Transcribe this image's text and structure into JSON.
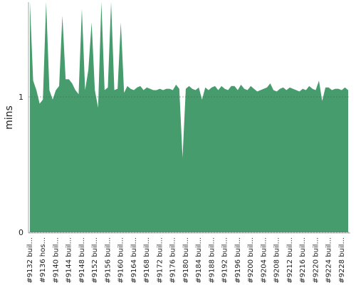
{
  "chart_data": {
    "type": "area",
    "y_label": "mins",
    "categories": [
      "#9132 buil...",
      null,
      null,
      null,
      "#9136 hos...",
      null,
      null,
      null,
      "#9140 buil...",
      null,
      null,
      null,
      "#9144 buil...",
      null,
      null,
      null,
      "#9148 buil...",
      null,
      null,
      null,
      "#9152 buil...",
      null,
      null,
      null,
      "#9156 buil...",
      null,
      null,
      null,
      "#9160 buil...",
      null,
      null,
      null,
      "#9164 buil...",
      null,
      null,
      null,
      "#9168 buil...",
      null,
      null,
      null,
      "#9172 buil...",
      null,
      null,
      null,
      "#9176 buil...",
      null,
      null,
      null,
      "#9180 buil...",
      null,
      null,
      null,
      "#9184 buil...",
      null,
      null,
      null,
      "#9188 buil...",
      null,
      null,
      null,
      "#9192 buil...",
      null,
      null,
      null,
      "#9196 buil...",
      null,
      null,
      null,
      "#9200 buil...",
      null,
      null,
      null,
      "#9204 buil...",
      null,
      null,
      null,
      "#9208 buil...",
      null,
      null,
      null,
      "#9212 buil...",
      null,
      null,
      null,
      "#9216 buil...",
      null,
      null,
      null,
      "#9220 buil...",
      null,
      null,
      null,
      "#9224 buil...",
      null,
      null,
      null,
      "#9228 buil...",
      null,
      null
    ],
    "values": [
      1.7,
      1.12,
      1.05,
      0.95,
      0.98,
      1.7,
      1.05,
      0.98,
      1.05,
      1.08,
      1.6,
      1.13,
      1.13,
      1.1,
      1.05,
      1.02,
      1.65,
      1.05,
      1.2,
      1.55,
      1.05,
      0.92,
      1.7,
      1.05,
      1.07,
      1.7,
      1.05,
      1.06,
      1.55,
      1.03,
      1.08,
      1.06,
      1.05,
      1.07,
      1.08,
      1.05,
      1.07,
      1.06,
      1.05,
      1.05,
      1.06,
      1.05,
      1.06,
      1.06,
      1.05,
      1.09,
      1.06,
      0.55,
      1.06,
      1.08,
      1.06,
      1.05,
      1.07,
      0.98,
      1.07,
      1.05,
      1.07,
      1.08,
      1.05,
      1.08,
      1.06,
      1.05,
      1.08,
      1.08,
      1.05,
      1.09,
      1.06,
      1.05,
      1.08,
      1.06,
      1.04,
      1.05,
      1.06,
      1.07,
      1.1,
      1.05,
      1.04,
      1.06,
      1.07,
      1.05,
      1.07,
      1.06,
      1.05,
      1.04,
      1.06,
      1.05,
      1.08,
      1.06,
      1.05,
      1.12,
      0.97,
      1.07,
      1.07,
      1.05,
      1.06,
      1.06,
      1.05,
      1.07,
      1.05
    ],
    "color": "#469c6c",
    "ylim": [
      0,
      1.7
    ],
    "yticks": [
      0,
      1
    ],
    "grid": true
  }
}
